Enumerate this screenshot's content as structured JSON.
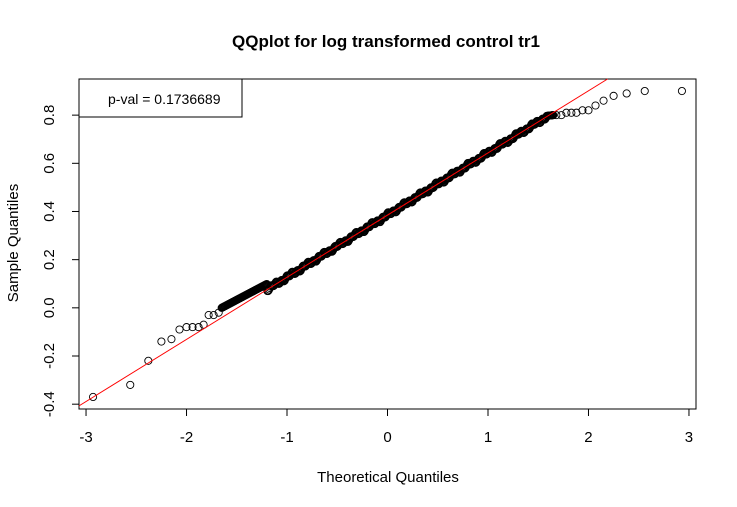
{
  "chart_data": {
    "type": "scatter",
    "title": "QQplot for log transformed control tr1",
    "xlabel": "Theoretical Quantiles",
    "ylabel": "Sample Quantiles",
    "xlim": [
      -3.07,
      3.07
    ],
    "ylim": [
      -0.42,
      0.95
    ],
    "x_ticks": [
      -3,
      -2,
      -1,
      0,
      1,
      2,
      3
    ],
    "y_ticks": [
      -0.4,
      -0.2,
      0.0,
      0.2,
      0.4,
      0.6,
      0.8
    ],
    "y_tick_labels": [
      "-0.4",
      "-0.2",
      "0.0",
      "0.2",
      "0.4",
      "0.6",
      "0.8"
    ],
    "legend": {
      "text": "p-val = 0.1736689",
      "position": "top-left"
    },
    "reference_line": {
      "intercept": 0.385,
      "slope": 0.258,
      "color": "#ff0000"
    },
    "grid": false,
    "series": [
      {
        "marker": "open-circle",
        "tail_points": [
          [
            -2.93,
            -0.37
          ],
          [
            -2.56,
            -0.32
          ],
          [
            -2.38,
            -0.22
          ],
          [
            -2.25,
            -0.14
          ],
          [
            -2.15,
            -0.13
          ],
          [
            -2.07,
            -0.09
          ],
          [
            -2.0,
            -0.08
          ],
          [
            -1.94,
            -0.08
          ],
          [
            -1.88,
            -0.08
          ],
          [
            -1.83,
            -0.07
          ],
          [
            -1.78,
            -0.03
          ],
          [
            -1.73,
            -0.03
          ],
          [
            -1.68,
            -0.02
          ],
          [
            1.68,
            0.8
          ],
          [
            1.73,
            0.8
          ],
          [
            1.78,
            0.81
          ],
          [
            1.83,
            0.81
          ],
          [
            1.88,
            0.81
          ],
          [
            1.94,
            0.82
          ],
          [
            2.0,
            0.82
          ],
          [
            2.07,
            0.84
          ],
          [
            2.15,
            0.86
          ],
          [
            2.25,
            0.88
          ],
          [
            2.38,
            0.89
          ],
          [
            2.56,
            0.9
          ],
          [
            2.93,
            0.9
          ]
        ],
        "body": {
          "n": 560,
          "x_range": [
            -1.65,
            1.65
          ],
          "intercept": 0.385,
          "slope": 0.258,
          "lower_end": 0.0,
          "upper_end": 0.8
        }
      }
    ]
  }
}
